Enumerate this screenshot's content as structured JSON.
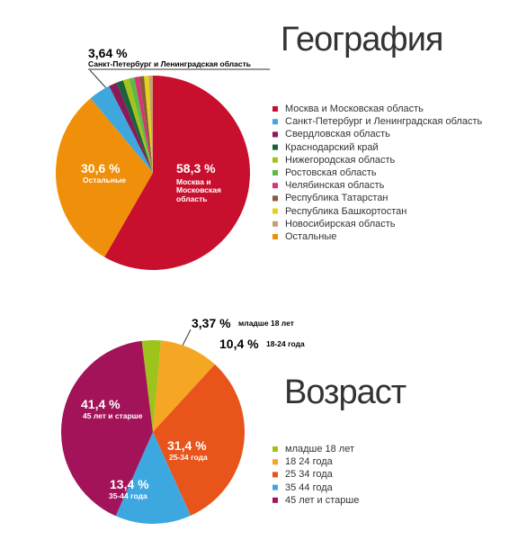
{
  "chart_data": [
    {
      "type": "pie",
      "title": "География",
      "categories": [
        "Москва и Московская область",
        "Санкт-Петербург и Ленинградская область",
        "Свердловская область",
        "Краснодарский край",
        "Нижегородская область",
        "Ростовская область",
        "Челябинская область",
        "Республика Татарстан",
        "Республика Башкортостан",
        "Новосибирская область",
        "Остальные"
      ],
      "values": [
        58.3,
        3.64,
        1.4,
        1.1,
        1.0,
        0.9,
        0.8,
        0.8,
        0.8,
        0.66,
        30.6
      ],
      "value_labels": [
        "58,3 %",
        "3,64 %",
        null,
        null,
        null,
        null,
        null,
        null,
        null,
        null,
        "30,6 %"
      ],
      "colors": [
        "#c8102e",
        "#3ea8dc",
        "#8b1a5a",
        "#17633a",
        "#a6c21a",
        "#5fb848",
        "#d6337a",
        "#8a5a3a",
        "#e3d21a",
        "#c8a070",
        "#f0900a"
      ]
    },
    {
      "type": "pie",
      "title": "Возраст",
      "categories": [
        "младше 18 лет",
        "18 24 года",
        "25 34 года",
        "35 44 года",
        "45 лет и старше"
      ],
      "values": [
        3.37,
        10.4,
        31.4,
        13.4,
        41.4
      ],
      "value_labels": [
        "3,37 %",
        "10,4 %",
        "31,4 %",
        "13,4 %",
        "41,4 %"
      ],
      "value_notes": [
        "младше 18 лет",
        "18-24 года",
        "25-34 года",
        "35-44 года",
        "45 лет и старше"
      ],
      "colors": [
        "#9dc41a",
        "#f5a623",
        "#e8541a",
        "#3da8e0",
        "#a3135a"
      ]
    }
  ]
}
